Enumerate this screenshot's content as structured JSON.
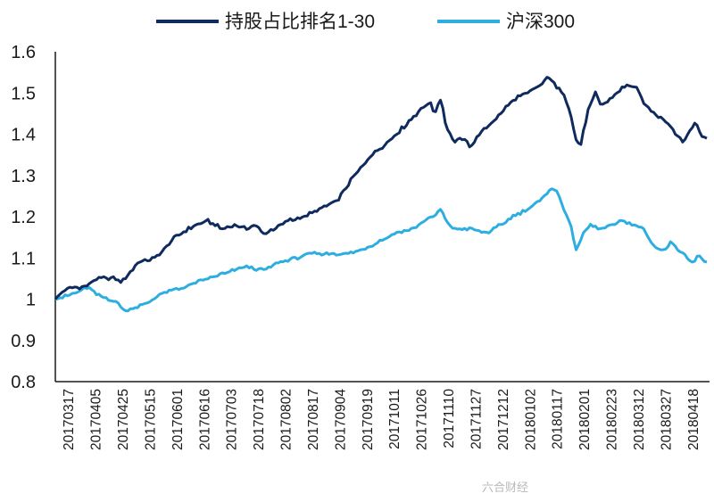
{
  "chart_data": {
    "type": "line",
    "title": "",
    "xlabel": "",
    "ylabel": "",
    "ylim": [
      0.8,
      1.6
    ],
    "yticks": [
      0.8,
      0.9,
      1.0,
      1.1,
      1.2,
      1.3,
      1.4,
      1.5,
      1.6
    ],
    "ytick_labels": [
      "0.8",
      "0.9",
      "1",
      "1.1",
      "1.2",
      "1.3",
      "1.4",
      "1.5",
      "1.6"
    ],
    "xtick_labels": [
      "20170317",
      "20170405",
      "20170425",
      "20170515",
      "20170601",
      "20170616",
      "20170703",
      "20170718",
      "20170802",
      "20170817",
      "20170904",
      "20170919",
      "20171011",
      "20171026",
      "20171110",
      "20171127",
      "20171212",
      "20180102",
      "20180117",
      "20180201",
      "20180223",
      "20180312",
      "20180327",
      "20180418"
    ],
    "n_points": 270,
    "legend_position": "top",
    "grid": false,
    "series": [
      {
        "name": "持股占比排名1-30",
        "color": "#0f2a5c",
        "anchors": [
          [
            0,
            1.0
          ],
          [
            5,
            1.02
          ],
          [
            12,
            1.03
          ],
          [
            18,
            1.03
          ],
          [
            25,
            1.05
          ],
          [
            35,
            1.05
          ],
          [
            40,
            1.04
          ],
          [
            50,
            1.09
          ],
          [
            60,
            1.1
          ],
          [
            65,
            1.12
          ],
          [
            72,
            1.15
          ],
          [
            80,
            1.17
          ],
          [
            85,
            1.18
          ],
          [
            92,
            1.19
          ],
          [
            100,
            1.17
          ],
          [
            108,
            1.18
          ],
          [
            115,
            1.17
          ],
          [
            120,
            1.18
          ],
          [
            125,
            1.16
          ],
          [
            132,
            1.17
          ],
          [
            140,
            1.19
          ],
          [
            150,
            1.2
          ],
          [
            160,
            1.22
          ],
          [
            170,
            1.24
          ],
          [
            175,
            1.27
          ],
          [
            180,
            1.3
          ],
          [
            190,
            1.35
          ],
          [
            200,
            1.38
          ],
          [
            210,
            1.42
          ],
          [
            220,
            1.46
          ],
          [
            225,
            1.48
          ],
          [
            228,
            1.45
          ],
          [
            230,
            1.47
          ],
          [
            232,
            1.49
          ],
          [
            235,
            1.42
          ],
          [
            240,
            1.38
          ],
          [
            245,
            1.39
          ],
          [
            250,
            1.37
          ],
          [
            255,
            1.4
          ],
          [
            260,
            1.42
          ],
          [
            266,
            1.44
          ],
          [
            272,
            1.47
          ],
          [
            278,
            1.49
          ],
          [
            285,
            1.5
          ],
          [
            292,
            1.52
          ],
          [
            297,
            1.54
          ],
          [
            302,
            1.51
          ],
          [
            306,
            1.5
          ],
          [
            310,
            1.45
          ],
          [
            313,
            1.39
          ],
          [
            316,
            1.37
          ],
          [
            320,
            1.45
          ],
          [
            325,
            1.5
          ],
          [
            328,
            1.47
          ],
          [
            333,
            1.48
          ],
          [
            340,
            1.51
          ],
          [
            345,
            1.52
          ],
          [
            350,
            1.51
          ],
          [
            355,
            1.47
          ],
          [
            360,
            1.45
          ],
          [
            365,
            1.44
          ],
          [
            370,
            1.42
          ],
          [
            374,
            1.4
          ],
          [
            377,
            1.38
          ],
          [
            382,
            1.41
          ],
          [
            385,
            1.43
          ],
          [
            388,
            1.4
          ],
          [
            392,
            1.39
          ]
        ]
      },
      {
        "name": "沪深300",
        "color": "#2eaee0",
        "anchors": [
          [
            0,
            1.0
          ],
          [
            8,
            1.01
          ],
          [
            15,
            1.02
          ],
          [
            20,
            1.03
          ],
          [
            25,
            1.01
          ],
          [
            32,
            1.0
          ],
          [
            38,
            0.99
          ],
          [
            42,
            0.97
          ],
          [
            48,
            0.98
          ],
          [
            55,
            0.99
          ],
          [
            62,
            1.01
          ],
          [
            70,
            1.02
          ],
          [
            78,
            1.03
          ],
          [
            85,
            1.04
          ],
          [
            92,
            1.05
          ],
          [
            100,
            1.06
          ],
          [
            108,
            1.07
          ],
          [
            115,
            1.08
          ],
          [
            125,
            1.07
          ],
          [
            135,
            1.09
          ],
          [
            145,
            1.1
          ],
          [
            155,
            1.11
          ],
          [
            165,
            1.11
          ],
          [
            175,
            1.11
          ],
          [
            185,
            1.12
          ],
          [
            195,
            1.14
          ],
          [
            205,
            1.16
          ],
          [
            215,
            1.17
          ],
          [
            222,
            1.19
          ],
          [
            228,
            1.2
          ],
          [
            232,
            1.22
          ],
          [
            235,
            1.19
          ],
          [
            240,
            1.17
          ],
          [
            250,
            1.17
          ],
          [
            260,
            1.16
          ],
          [
            268,
            1.18
          ],
          [
            275,
            1.2
          ],
          [
            285,
            1.22
          ],
          [
            292,
            1.24
          ],
          [
            298,
            1.27
          ],
          [
            302,
            1.26
          ],
          [
            306,
            1.22
          ],
          [
            310,
            1.18
          ],
          [
            313,
            1.12
          ],
          [
            318,
            1.16
          ],
          [
            322,
            1.18
          ],
          [
            328,
            1.17
          ],
          [
            335,
            1.18
          ],
          [
            342,
            1.19
          ],
          [
            348,
            1.18
          ],
          [
            354,
            1.17
          ],
          [
            358,
            1.14
          ],
          [
            363,
            1.12
          ],
          [
            367,
            1.12
          ],
          [
            371,
            1.14
          ],
          [
            375,
            1.12
          ],
          [
            380,
            1.1
          ],
          [
            384,
            1.09
          ],
          [
            387,
            1.11
          ],
          [
            390,
            1.09
          ],
          [
            392,
            1.09
          ]
        ]
      }
    ]
  },
  "legend": {
    "items": [
      "持股占比排名1-30",
      "沪深300"
    ]
  },
  "watermark": "六合财经"
}
